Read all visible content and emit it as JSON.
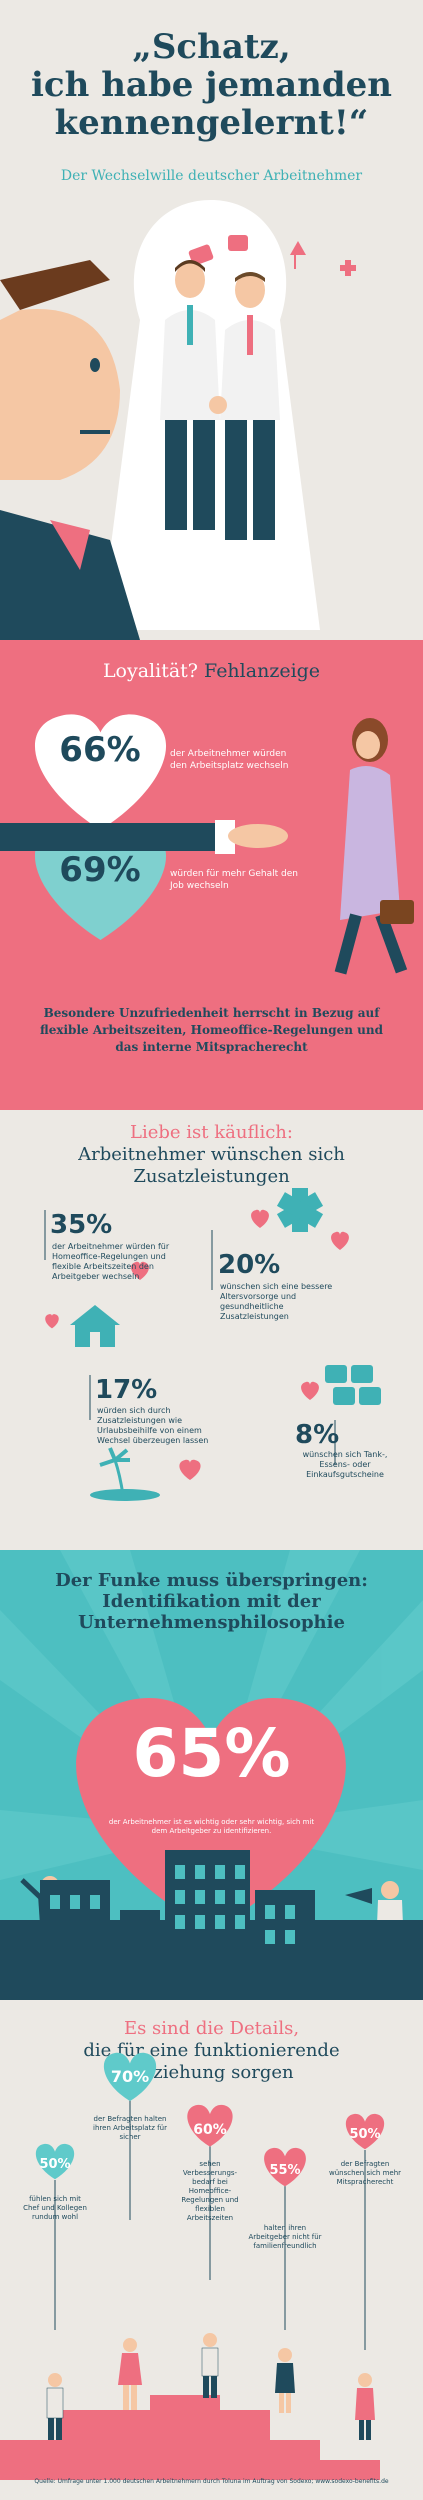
{
  "header": {
    "headline_line1": "„Schatz,",
    "headline_line2": "ich habe jemanden",
    "headline_line3": "kennengelernt!“",
    "subheadline": "Der Wechselwille deutscher Arbeitnehmer"
  },
  "loyalty": {
    "title_part1": "Loyalität?",
    "title_part2": "Fehlanzeige",
    "stat1": {
      "value": "66%",
      "text": "der Arbeitnehmer würden den Arbeitsplatz wechseln"
    },
    "stat2": {
      "value": "69%",
      "text": "würden für mehr Gehalt den Job wechseln"
    },
    "note": "Besondere Unzufriedenheit herrscht in Bezug auf flexible Arbeitszeiten, Homeoffice-Regelungen und das interne Mitspracherecht"
  },
  "benefits": {
    "title_line1": "Liebe ist käuflich:",
    "title_line2": "Arbeitnehmer wünschen sich",
    "title_line3": "Zusatzleistungen",
    "items": [
      {
        "value": "35%",
        "text": "der Arbeitnehmer würden für Homeoffice-Regelungen und flexible Arbeitszeiten den Arbeitgeber wechseln"
      },
      {
        "value": "20%",
        "text": "wünschen sich eine bessere Altersvorsorge und gesundheitliche Zusatzleistungen"
      },
      {
        "value": "17%",
        "text": "würden sich durch Zusatzleistungen wie Urlaubsbeihilfe von einem Wechsel überzeugen lassen"
      },
      {
        "value": "8%",
        "text": "wünschen sich Tank-, Essens- oder Einkaufsgutscheine"
      }
    ]
  },
  "identification": {
    "title_line1": "Der Funke muss überspringen:",
    "title_line2": "Identifikation mit der",
    "title_line3": "Unternehmensphilosophie",
    "value": "65%",
    "text": "der Arbeitnehmer ist es wichtig oder sehr wichtig, sich mit dem Arbeitgeber zu identifizieren."
  },
  "details": {
    "title_line1": "Es sind die Details,",
    "title_line2": "die für eine funktionierende",
    "title_line3": "Beziehung sorgen",
    "items": [
      {
        "value": "50%",
        "text": "fühlen sich mit Chef und Kollegen rundum wohl"
      },
      {
        "value": "70%",
        "text": "der Befragten halten ihren Arbeitsplatz für sicher"
      },
      {
        "value": "60%",
        "text": "sehen Verbesserungs-bedarf bei Homeoffice-Regelungen und flexiblen Arbeitszeiten"
      },
      {
        "value": "55%",
        "text": "halten ihren Arbeitgeber nicht für familienfreundlich"
      },
      {
        "value": "50%",
        "text": "der Befragten wünschen sich mehr Mitspracherecht"
      }
    ],
    "footer": "Quelle: Umfrage unter 1.000 deutschen Arbeitnehmern durch Toluna im Auftrag von Sodexo; www.sodexo-benefits.de"
  },
  "colors": {
    "navy": "#1f4a5c",
    "pink": "#ee6f80",
    "teal": "#4dbfc1",
    "cream": "#ece9e4"
  }
}
